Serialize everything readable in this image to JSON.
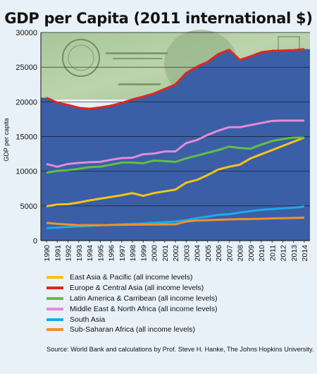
{
  "chart_data": {
    "type": "line",
    "title": "GDP per Capita (2011 international $)",
    "xlabel": "",
    "ylabel": "GDP per capita",
    "x": [
      "1990",
      "1991",
      "1992",
      "1993",
      "1994",
      "1995",
      "1996",
      "1997",
      "1998",
      "1999",
      "2000",
      "2001",
      "2002",
      "2003",
      "2004",
      "2005",
      "2006",
      "2007",
      "2008",
      "2009",
      "2010",
      "2011",
      "2012",
      "2013",
      "2014"
    ],
    "ylim": [
      0,
      30000
    ],
    "yticks": [
      "0",
      "5000",
      "10000",
      "15000",
      "20000",
      "25000",
      "30000"
    ],
    "grid": true,
    "legend": "bottom",
    "series": [
      {
        "name": "East Asia & Pacific (all income levels)",
        "color": "#f4c516",
        "values": [
          4950,
          5200,
          5250,
          5500,
          5800,
          6050,
          6300,
          6550,
          6850,
          6450,
          6850,
          7100,
          7350,
          8350,
          8750,
          9450,
          10250,
          10650,
          10950,
          11850,
          12450,
          13050,
          13650,
          14250,
          14850
        ]
      },
      {
        "name": "Europe & Central Asia (all income levels)",
        "color": "#e1261c",
        "values": [
          20600,
          19900,
          19550,
          19150,
          19000,
          19200,
          19450,
          19850,
          20350,
          20750,
          21200,
          21850,
          22500,
          24150,
          25050,
          25750,
          26900,
          27500,
          26050,
          26550,
          27150,
          27350,
          27400,
          27450,
          27600
        ]
      },
      {
        "name": "Latin America & Carribean (all income levels)",
        "color": "#62c03f",
        "values": [
          9800,
          10050,
          10150,
          10350,
          10600,
          10650,
          10950,
          11250,
          11250,
          11150,
          11550,
          11450,
          11350,
          11850,
          12250,
          12650,
          13050,
          13550,
          13350,
          13250,
          13850,
          14350,
          14650,
          14850,
          14850
        ]
      },
      {
        "name": "Middle East & North Africa (all income levels)",
        "color": "#e58bd7",
        "values": [
          11050,
          10650,
          11050,
          11200,
          11300,
          11350,
          11650,
          11900,
          11950,
          12450,
          12550,
          12850,
          12850,
          14050,
          14500,
          15250,
          15850,
          16350,
          16350,
          16650,
          16950,
          17250,
          17300,
          17300,
          17300
        ]
      },
      {
        "name": "South Asia",
        "color": "#1ea9ea",
        "values": [
          1800,
          1880,
          1970,
          2050,
          2120,
          2200,
          2280,
          2350,
          2420,
          2480,
          2580,
          2660,
          2750,
          2950,
          3250,
          3450,
          3720,
          3800,
          4050,
          4250,
          4450,
          4550,
          4670,
          4750,
          4900
        ]
      },
      {
        "name": "Sub-Saharan Africa (all income levels)",
        "color": "#f0912a",
        "values": [
          2550,
          2420,
          2330,
          2230,
          2220,
          2230,
          2250,
          2270,
          2300,
          2310,
          2330,
          2340,
          2350,
          2750,
          2900,
          2950,
          3000,
          3050,
          3100,
          3120,
          3150,
          3200,
          3230,
          3270,
          3300
        ]
      }
    ]
  },
  "source": "Source: World Bank and calculations by Prof. Steve H. Hanke, The Johns Hopkins University."
}
